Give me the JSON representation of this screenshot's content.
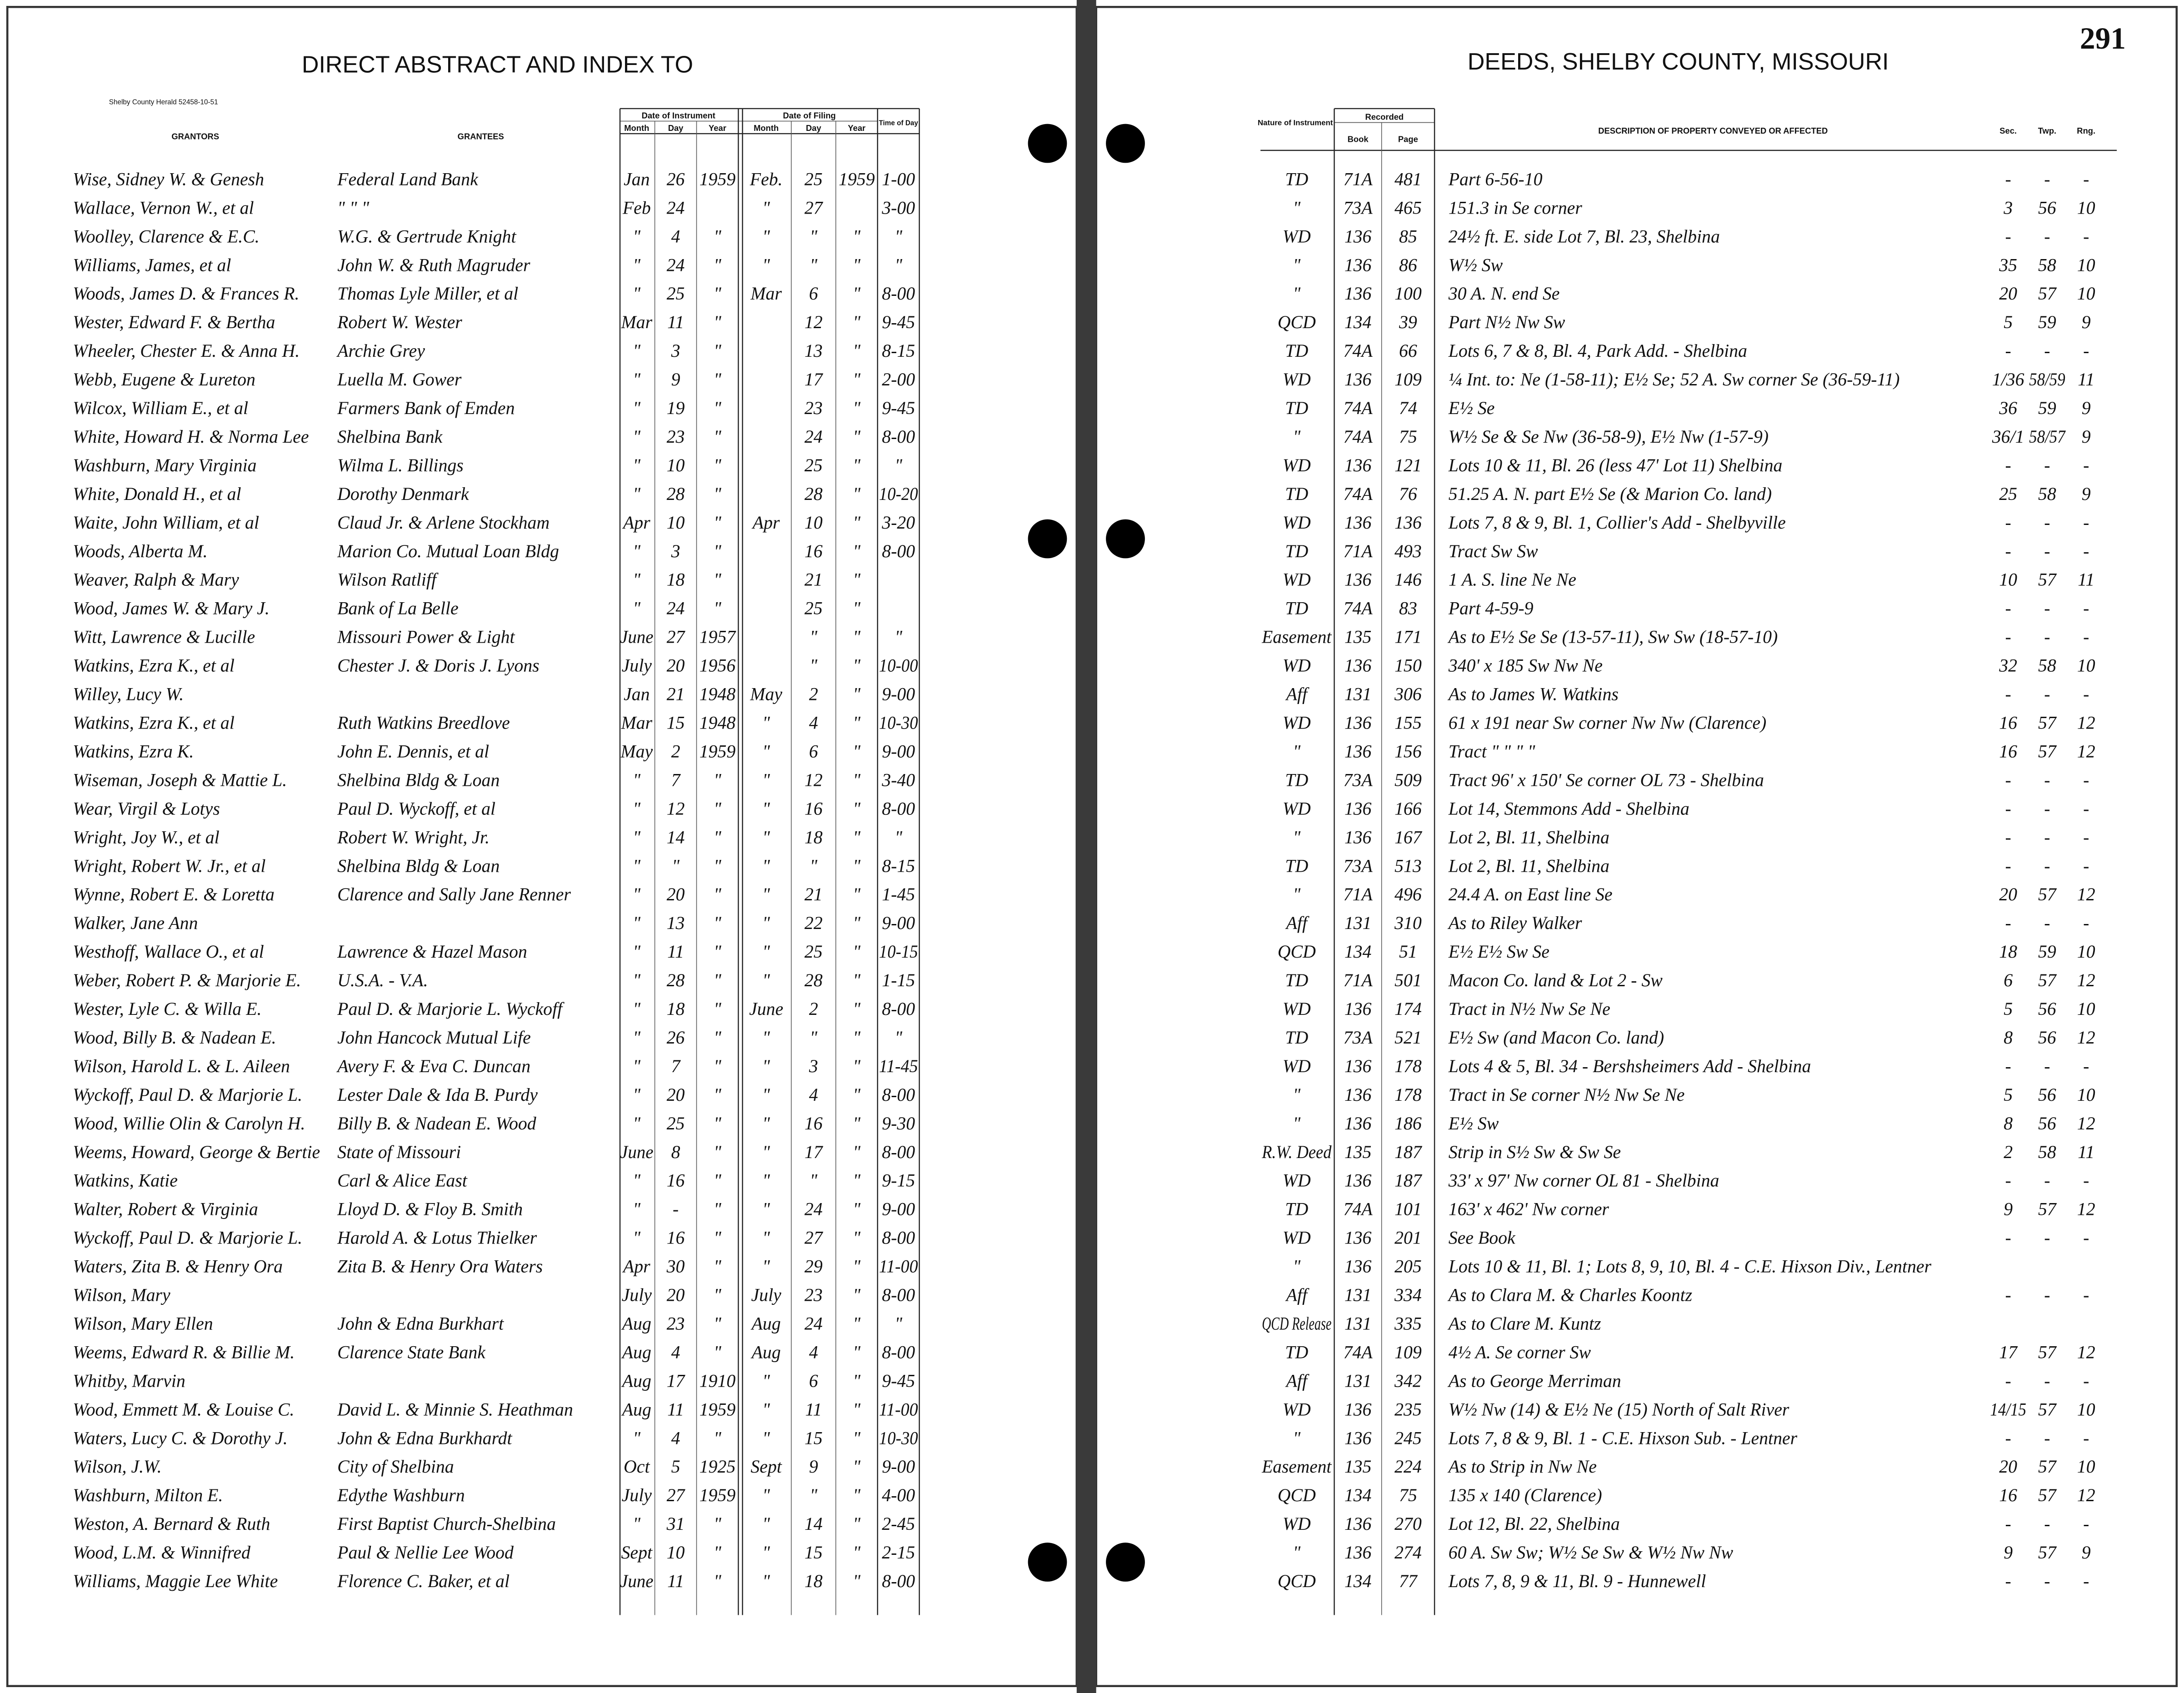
{
  "left_page": {
    "title": "DIRECT ABSTRACT AND INDEX TO",
    "printer": "Shelby County Herald 52458-10-51",
    "headers": {
      "grantors": "GRANTORS",
      "grantees": "GRANTEES",
      "date_of_instrument": "Date of Instrument",
      "date_of_filing": "Date of Filing",
      "month_1": "Month",
      "day_1": "Day",
      "year_1": "Year",
      "month_2": "Month",
      "day_2": "Day",
      "year_2": "Year",
      "time_of_day": "Time of Day"
    },
    "rows": [
      [
        "Wise, Sidney W. & Genesh",
        "Federal Land Bank",
        "Jan",
        "26",
        "1959",
        "Feb.",
        "25",
        "1959",
        "1-00"
      ],
      [
        "Wallace, Vernon W., et al",
        "\"     \"     \"",
        "Feb",
        "24",
        null,
        "\"",
        "27",
        null,
        "3-00"
      ],
      [
        "Woolley, Clarence & E.C.",
        "W.G. & Gertrude Knight",
        "\"",
        "4",
        "\"",
        "\"",
        "\"",
        "\"",
        "\""
      ],
      [
        "Williams, James, et al",
        "John W. & Ruth Magruder",
        "\"",
        "24",
        "\"",
        "\"",
        "\"",
        "\"",
        "\""
      ],
      [
        "Woods, James D. & Frances R.",
        "Thomas Lyle Miller, et al",
        "\"",
        "25",
        "\"",
        "Mar",
        "6",
        "\"",
        "8-00"
      ],
      [
        "Wester, Edward F. & Bertha",
        "Robert W. Wester",
        "Mar",
        "11",
        "\"",
        null,
        "12",
        "\"",
        "9-45"
      ],
      [
        "Wheeler, Chester E. & Anna H.",
        "Archie Grey",
        "\"",
        "3",
        "\"",
        null,
        "13",
        "\"",
        "8-15"
      ],
      [
        "Webb, Eugene & Lureton",
        "Luella M. Gower",
        "\"",
        "9",
        "\"",
        null,
        "17",
        "\"",
        "2-00"
      ],
      [
        "Wilcox, William E., et al",
        "Farmers Bank of Emden",
        "\"",
        "19",
        "\"",
        null,
        "23",
        "\"",
        "9-45"
      ],
      [
        "White, Howard H. & Norma Lee",
        "Shelbina Bank",
        "\"",
        "23",
        "\"",
        null,
        "24",
        "\"",
        "8-00"
      ],
      [
        "Washburn, Mary Virginia",
        "Wilma L. Billings",
        "\"",
        "10",
        "\"",
        null,
        "25",
        "\"",
        "\""
      ],
      [
        "White, Donald H., et al",
        "Dorothy Denmark",
        "\"",
        "28",
        "\"",
        null,
        "28",
        "\"",
        "10-20"
      ],
      [
        "Waite, John William, et al",
        "Claud Jr. & Arlene Stockham",
        "Apr",
        "10",
        "\"",
        "Apr",
        "10",
        "\"",
        "3-20"
      ],
      [
        "Woods, Alberta M.",
        "Marion Co. Mutual Loan Bldg",
        "\"",
        "3",
        "\"",
        null,
        "16",
        "\"",
        "8-00"
      ],
      [
        "Weaver, Ralph & Mary",
        "Wilson Ratliff",
        "\"",
        "18",
        "\"",
        null,
        "21",
        "\"",
        null
      ],
      [
        "Wood, James W. & Mary J.",
        "Bank of La Belle",
        "\"",
        "24",
        "\"",
        null,
        "25",
        "\"",
        null
      ],
      [
        "Witt, Lawrence & Lucille",
        "Missouri Power & Light",
        "June",
        "27",
        "1957",
        null,
        "\"",
        "\"",
        "\""
      ],
      [
        "Watkins, Ezra K., et al",
        "Chester J. & Doris J. Lyons",
        "July",
        "20",
        "1956",
        null,
        "\"",
        "\"",
        "10-00"
      ],
      [
        "Willey, Lucy W.",
        null,
        "Jan",
        "21",
        "1948",
        "May",
        "2",
        "\"",
        "9-00"
      ],
      [
        "Watkins, Ezra K., et al",
        "Ruth Watkins Breedlove",
        "Mar",
        "15",
        "1948",
        "\"",
        "4",
        "\"",
        "10-30"
      ],
      [
        "Watkins, Ezra K.",
        "John E. Dennis, et al",
        "May",
        "2",
        "1959",
        "\"",
        "6",
        "\"",
        "9-00"
      ],
      [
        "Wiseman, Joseph & Mattie L.",
        "Shelbina Bldg & Loan",
        "\"",
        "7",
        "\"",
        "\"",
        "12",
        "\"",
        "3-40"
      ],
      [
        "Wear, Virgil & Lotys",
        "Paul D. Wyckoff, et al",
        "\"",
        "12",
        "\"",
        "\"",
        "16",
        "\"",
        "8-00"
      ],
      [
        "Wright, Joy W., et al",
        "Robert W. Wright, Jr.",
        "\"",
        "14",
        "\"",
        "\"",
        "18",
        "\"",
        "\""
      ],
      [
        "Wright, Robert W. Jr., et al",
        "Shelbina Bldg & Loan",
        "\"",
        "\"",
        "\"",
        "\"",
        "\"",
        "\"",
        "8-15"
      ],
      [
        "Wynne, Robert E. & Loretta",
        "Clarence and Sally Jane Renner",
        "\"",
        "20",
        "\"",
        "\"",
        "21",
        "\"",
        "1-45"
      ],
      [
        "Walker, Jane Ann",
        null,
        "\"",
        "13",
        "\"",
        "\"",
        "22",
        "\"",
        "9-00"
      ],
      [
        "Westhoff, Wallace O., et al",
        "Lawrence & Hazel Mason",
        "\"",
        "11",
        "\"",
        "\"",
        "25",
        "\"",
        "10-15"
      ],
      [
        "Weber, Robert P. & Marjorie E.",
        "U.S.A. - V.A.",
        "\"",
        "28",
        "\"",
        "\"",
        "28",
        "\"",
        "1-15"
      ],
      [
        "Wester, Lyle C. & Willa E.",
        "Paul D. & Marjorie L. Wyckoff",
        "\"",
        "18",
        "\"",
        "June",
        "2",
        "\"",
        "8-00"
      ],
      [
        "Wood, Billy B. & Nadean E.",
        "John Hancock Mutual Life",
        "\"",
        "26",
        "\"",
        "\"",
        "\"",
        "\"",
        "\""
      ],
      [
        "Wilson, Harold L. & L. Aileen",
        "Avery F. & Eva C. Duncan",
        "\"",
        "7",
        "\"",
        "\"",
        "3",
        "\"",
        "11-45"
      ],
      [
        "Wyckoff, Paul D. & Marjorie L.",
        "Lester Dale & Ida B. Purdy",
        "\"",
        "20",
        "\"",
        "\"",
        "4",
        "\"",
        "8-00"
      ],
      [
        "Wood, Willie Olin & Carolyn H.",
        "Billy B. & Nadean E. Wood",
        "\"",
        "25",
        "\"",
        "\"",
        "16",
        "\"",
        "9-30"
      ],
      [
        "Weems, Howard, George & Bertie",
        "State of Missouri",
        "June",
        "8",
        "\"",
        "\"",
        "17",
        "\"",
        "8-00"
      ],
      [
        "Watkins, Katie",
        "Carl & Alice East",
        "\"",
        "16",
        "\"",
        "\"",
        "\"",
        "\"",
        "9-15"
      ],
      [
        "Walter, Robert & Virginia",
        "Lloyd D. & Floy B. Smith",
        "\"",
        "-",
        "\"",
        "\"",
        "24",
        "\"",
        "9-00"
      ],
      [
        "Wyckoff, Paul D. & Marjorie L.",
        "Harold A. & Lotus Thielker",
        "\"",
        "16",
        "\"",
        "\"",
        "27",
        "\"",
        "8-00"
      ],
      [
        "Waters, Zita B. & Henry Ora",
        "Zita B. & Henry Ora Waters",
        "Apr",
        "30",
        "\"",
        "\"",
        "29",
        "\"",
        "11-00"
      ],
      [
        "Wilson, Mary",
        null,
        "July",
        "20",
        "\"",
        "July",
        "23",
        "\"",
        "8-00"
      ],
      [
        "Wilson, Mary Ellen",
        "John & Edna Burkhart",
        "Aug",
        "23",
        "\"",
        "Aug",
        "24",
        "\"",
        "\""
      ],
      [
        "Weems, Edward R. & Billie M.",
        "Clarence State Bank",
        "Aug",
        "4",
        "\"",
        "Aug",
        "4",
        "\"",
        "8-00"
      ],
      [
        "Whitby, Marvin",
        null,
        "Aug",
        "17",
        "1910",
        "\"",
        "6",
        "\"",
        "9-45"
      ],
      [
        "Wood, Emmett M. & Louise C.",
        "David L. & Minnie S. Heathman",
        "Aug",
        "11",
        "1959",
        "\"",
        "11",
        "\"",
        "11-00"
      ],
      [
        "Waters, Lucy C. & Dorothy J.",
        "John & Edna Burkhardt",
        "\"",
        "4",
        "\"",
        "\"",
        "15",
        "\"",
        "10-30"
      ],
      [
        "Wilson, J.W.",
        "City of Shelbina",
        "Oct",
        "5",
        "1925",
        "Sept",
        "9",
        "\"",
        "9-00"
      ],
      [
        "Washburn, Milton E.",
        "Edythe Washburn",
        "July",
        "27",
        "1959",
        "\"",
        "\"",
        "\"",
        "4-00"
      ],
      [
        "Weston, A. Bernard & Ruth",
        "First Baptist Church-Shelbina",
        "\"",
        "31",
        "\"",
        "\"",
        "14",
        "\"",
        "2-45"
      ],
      [
        "Wood, L.M. & Winnifred",
        "Paul & Nellie Lee Wood",
        "Sept",
        "10",
        "\"",
        "\"",
        "15",
        "\"",
        "2-15"
      ],
      [
        "Williams, Maggie Lee White",
        "Florence C. Baker, et al",
        "June",
        "11",
        "\"",
        "\"",
        "18",
        "\"",
        "8-00"
      ]
    ]
  },
  "right_page": {
    "page_number": "291",
    "title": "DEEDS, SHELBY COUNTY, MISSOURI",
    "headers": {
      "nature": "Nature of Instrument",
      "recorded": "Recorded",
      "book": "Book",
      "page": "Page",
      "description": "DESCRIPTION OF PROPERTY CONVEYED OR AFFECTED",
      "sec": "Sec.",
      "twp": "Twp.",
      "rng": "Rng."
    },
    "rows": [
      [
        "TD",
        "71A",
        "481",
        "Part 6-56-10",
        "-",
        "-",
        "-"
      ],
      [
        "\"",
        "73A",
        "465",
        "151.3 in Se corner",
        "3",
        "56",
        "10"
      ],
      [
        "WD",
        "136",
        "85",
        "24½ ft. E. side Lot 7, Bl. 23, Shelbina",
        "-",
        "-",
        "-"
      ],
      [
        "\"",
        "136",
        "86",
        "W½ Sw",
        "35",
        "58",
        "10"
      ],
      [
        "\"",
        "136",
        "100",
        "30 A. N. end Se",
        "20",
        "57",
        "10"
      ],
      [
        "QCD",
        "134",
        "39",
        "Part N½ Nw Sw",
        "5",
        "59",
        "9"
      ],
      [
        "TD",
        "74A",
        "66",
        "Lots 6, 7 & 8, Bl. 4, Park Add. - Shelbina",
        "-",
        "-",
        "-"
      ],
      [
        "WD",
        "136",
        "109",
        "¼ Int. to: Ne (1-58-11); E½ Se; 52 A. Sw corner Se (36-59-11)",
        "1/36",
        "58/59",
        "11"
      ],
      [
        "TD",
        "74A",
        "74",
        "E½ Se",
        "36",
        "59",
        "9"
      ],
      [
        "\"",
        "74A",
        "75",
        "W½ Se & Se Nw (36-58-9), E½ Nw (1-57-9)",
        "36/1",
        "58/57",
        "9"
      ],
      [
        "WD",
        "136",
        "121",
        "Lots 10 & 11, Bl. 26 (less 47' Lot 11) Shelbina",
        "-",
        "-",
        "-"
      ],
      [
        "TD",
        "74A",
        "76",
        "51.25 A. N. part E½ Se (& Marion Co. land)",
        "25",
        "58",
        "9"
      ],
      [
        "WD",
        "136",
        "136",
        "Lots 7, 8 & 9, Bl. 1, Collier's Add - Shelbyville",
        "-",
        "-",
        "-"
      ],
      [
        "TD",
        "71A",
        "493",
        "Tract Sw Sw",
        "-",
        "-",
        "-"
      ],
      [
        "WD",
        "136",
        "146",
        "1 A. S. line Ne Ne",
        "10",
        "57",
        "11"
      ],
      [
        "TD",
        "74A",
        "83",
        "Part 4-59-9",
        "-",
        "-",
        "-"
      ],
      [
        "Easement",
        "135",
        "171",
        "As to E½ Se Se (13-57-11), Sw Sw (18-57-10)",
        "-",
        "-",
        "-"
      ],
      [
        "WD",
        "136",
        "150",
        "340' x 185 Sw Nw Ne",
        "32",
        "58",
        "10"
      ],
      [
        "Aff",
        "131",
        "306",
        "As to James W. Watkins",
        "-",
        "-",
        "-"
      ],
      [
        "WD",
        "136",
        "155",
        "61 x 191 near Sw corner Nw Nw (Clarence)",
        "16",
        "57",
        "12"
      ],
      [
        "\"",
        "136",
        "156",
        "Tract   \"   \"   \"   \"",
        "16",
        "57",
        "12"
      ],
      [
        "TD",
        "73A",
        "509",
        "Tract 96' x 150' Se corner OL 73 - Shelbina",
        "-",
        "-",
        "-"
      ],
      [
        "WD",
        "136",
        "166",
        "Lot 14, Stemmons Add - Shelbina",
        "-",
        "-",
        "-"
      ],
      [
        "\"",
        "136",
        "167",
        "Lot 2, Bl. 11, Shelbina",
        "-",
        "-",
        "-"
      ],
      [
        "TD",
        "73A",
        "513",
        "Lot 2, Bl. 11, Shelbina",
        "-",
        "-",
        "-"
      ],
      [
        "\"",
        "71A",
        "496",
        "24.4 A. on East line Se",
        "20",
        "57",
        "12"
      ],
      [
        "Aff",
        "131",
        "310",
        "As to Riley Walker",
        "-",
        "-",
        "-"
      ],
      [
        "QCD",
        "134",
        "51",
        "E½ E½ Sw Se",
        "18",
        "59",
        "10"
      ],
      [
        "TD",
        "71A",
        "501",
        "Macon Co. land & Lot 2 - Sw",
        "6",
        "57",
        "12"
      ],
      [
        "WD",
        "136",
        "174",
        "Tract in N½ Nw Se Ne",
        "5",
        "56",
        "10"
      ],
      [
        "TD",
        "73A",
        "521",
        "E½ Sw (and Macon Co. land)",
        "8",
        "56",
        "12"
      ],
      [
        "WD",
        "136",
        "178",
        "Lots 4 & 5, Bl. 34 - Bershsheimers Add - Shelbina",
        "-",
        "-",
        "-"
      ],
      [
        "\"",
        "136",
        "178",
        "Tract in Se corner N½ Nw Se Ne",
        "5",
        "56",
        "10"
      ],
      [
        "\"",
        "136",
        "186",
        "E½ Sw",
        "8",
        "56",
        "12"
      ],
      [
        "R.W. Deed",
        "135",
        "187",
        "Strip in S½ Sw & Sw Se",
        "2",
        "58",
        "11"
      ],
      [
        "WD",
        "136",
        "187",
        "33' x 97' Nw corner OL 81 - Shelbina",
        "-",
        "-",
        "-"
      ],
      [
        "TD",
        "74A",
        "101",
        "163' x 462' Nw corner",
        "9",
        "57",
        "12"
      ],
      [
        "WD",
        "136",
        "201",
        "See Book",
        "-",
        "-",
        "-"
      ],
      [
        "\"",
        "136",
        "205",
        "Lots 10 & 11, Bl. 1; Lots 8, 9, 10, Bl. 4 - C.E. Hixson Div., Lentner",
        null,
        null,
        null
      ],
      [
        "Aff",
        "131",
        "334",
        "As to Clara M. & Charles Koontz",
        "-",
        "-",
        "-"
      ],
      [
        "QCD Release",
        "131",
        "335",
        "As to Clare M. Kuntz",
        null,
        null,
        null
      ],
      [
        "TD",
        "74A",
        "109",
        "4½ A. Se corner Sw",
        "17",
        "57",
        "12"
      ],
      [
        "Aff",
        "131",
        "342",
        "As to George Merriman",
        "-",
        "-",
        "-"
      ],
      [
        "WD",
        "136",
        "235",
        "W½ Nw (14) & E½ Ne (15) North of Salt River",
        "14/15",
        "57",
        "10"
      ],
      [
        "\"",
        "136",
        "245",
        "Lots 7, 8 & 9, Bl. 1 - C.E. Hixson Sub. - Lentner",
        "-",
        "-",
        "-"
      ],
      [
        "Easement",
        "135",
        "224",
        "As to Strip in Nw Ne",
        "20",
        "57",
        "10"
      ],
      [
        "QCD",
        "134",
        "75",
        "135 x 140 (Clarence)",
        "16",
        "57",
        "12"
      ],
      [
        "WD",
        "136",
        "270",
        "Lot 12, Bl. 22, Shelbina",
        "-",
        "-",
        "-"
      ],
      [
        "\"",
        "136",
        "274",
        "60 A. Sw Sw; W½ Se Sw & W½ Nw Nw",
        "9",
        "57",
        "9"
      ],
      [
        "QCD",
        "134",
        "77",
        "Lots 7, 8, 9 & 11, Bl. 9 - Hunnewell",
        "-",
        "-",
        "-"
      ]
    ]
  }
}
